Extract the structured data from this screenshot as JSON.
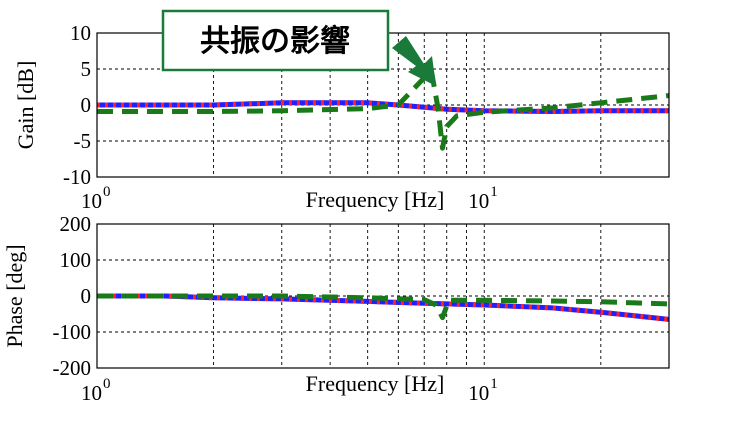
{
  "annotation": {
    "text": "共振の影響"
  },
  "colors": {
    "blue": "#1f1fff",
    "red": "#ff2020",
    "green": "#1a7a1a",
    "callout_border": "#1a7a3a"
  },
  "chart_data": [
    {
      "type": "line",
      "xscale": "log",
      "xlim": [
        1,
        30
      ],
      "ylim": [
        -10,
        10
      ],
      "yticks": [
        "10",
        "5",
        "0",
        "-5",
        "-10"
      ],
      "ytick_values": [
        10,
        5,
        0,
        -5,
        -10
      ],
      "xtick_labels": [
        {
          "base": "10",
          "exp": "0",
          "value": 1
        },
        {
          "base": "10",
          "exp": "1",
          "value": 10
        }
      ],
      "xlabel": "Frequency [Hz]",
      "ylabel": "Gain [dB]",
      "grid": true,
      "series": [
        {
          "color": "blue",
          "style": "solid",
          "x": [
            1,
            2,
            3,
            5,
            6,
            7,
            8,
            10,
            15,
            20,
            30
          ],
          "y": [
            0,
            0,
            0.3,
            0.3,
            0,
            -0.3,
            -0.6,
            -0.8,
            -0.9,
            -0.8,
            -0.8
          ]
        },
        {
          "color": "red",
          "style": "dotted",
          "x": [
            1,
            2,
            3,
            5,
            6,
            7,
            8,
            10,
            15,
            20,
            30
          ],
          "y": [
            0,
            0,
            0.3,
            0.3,
            0,
            -0.3,
            -0.6,
            -0.8,
            -0.9,
            -0.8,
            -0.8
          ]
        },
        {
          "color": "green",
          "style": "dashed",
          "x": [
            1,
            2,
            3,
            5,
            6,
            7.3,
            7.6,
            7.8,
            8.0,
            8.5,
            10,
            15,
            20,
            30
          ],
          "y": [
            -0.9,
            -0.9,
            -0.8,
            -0.5,
            0,
            4.8,
            -0.5,
            -6,
            -3,
            -1.5,
            -1,
            -0.4,
            0.3,
            1.3
          ]
        }
      ]
    },
    {
      "type": "line",
      "xscale": "log",
      "xlim": [
        1,
        30
      ],
      "ylim": [
        -200,
        200
      ],
      "yticks": [
        "200",
        "100",
        "0",
        "-100",
        "-200"
      ],
      "ytick_values": [
        200,
        100,
        0,
        -100,
        -200
      ],
      "xtick_labels": [
        {
          "base": "10",
          "exp": "0",
          "value": 1
        },
        {
          "base": "10",
          "exp": "1",
          "value": 10
        }
      ],
      "xlabel": "Frequency [Hz]",
      "ylabel": "Phase [deg]",
      "grid": true,
      "series": [
        {
          "color": "blue",
          "style": "solid",
          "x": [
            1,
            1.5,
            2,
            3,
            5,
            7,
            8,
            10,
            15,
            20,
            30
          ],
          "y": [
            0,
            0,
            -5,
            -8,
            -15,
            -20,
            -22,
            -25,
            -33,
            -45,
            -65
          ]
        },
        {
          "color": "red",
          "style": "dotted",
          "x": [
            1,
            1.5,
            2,
            3,
            5,
            7,
            8,
            10,
            15,
            20,
            30
          ],
          "y": [
            0,
            0,
            -5,
            -8,
            -15,
            -20,
            -22,
            -25,
            -33,
            -45,
            -65
          ]
        },
        {
          "color": "green",
          "style": "dashed",
          "x": [
            1,
            2,
            3,
            5,
            7,
            7.5,
            7.8,
            8.1,
            10,
            15,
            20,
            30
          ],
          "y": [
            0,
            0,
            0,
            -5,
            -10,
            -25,
            -60,
            -12,
            -12,
            -14,
            -16,
            -22
          ]
        }
      ]
    }
  ]
}
